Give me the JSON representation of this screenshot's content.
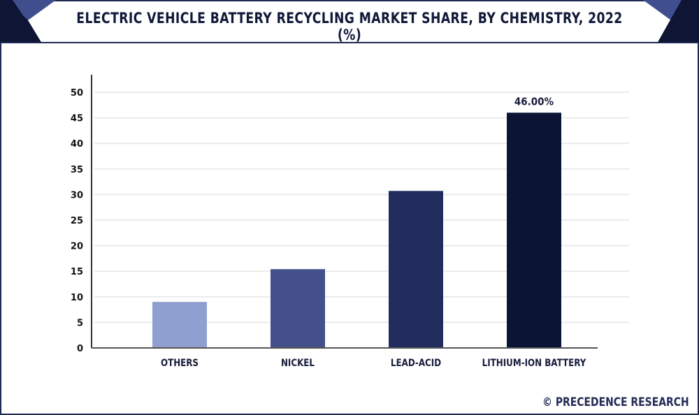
{
  "header": {
    "title": "ELECTRIC VEHICLE BATTERY RECYCLING MARKET SHARE, BY CHEMISTRY, 2022 (%)"
  },
  "footer": {
    "copyright_icon": "©",
    "brand": "PRECEDENCE RESEARCH"
  },
  "colors": {
    "frame": "#1d2a55",
    "title": "#0f1838",
    "accent_dark": "#0e1535",
    "accent_light": "#414e8e"
  },
  "chart_data": {
    "type": "bar",
    "title": "ELECTRIC VEHICLE BATTERY RECYCLING MARKET SHARE, BY CHEMISTRY, 2022 (%)",
    "xlabel": "",
    "ylabel": "",
    "categories": [
      "OTHERS",
      "NICKEL",
      "LEAD-ACID",
      "LITHIUM-ION BATTERY"
    ],
    "values": [
      9.0,
      15.4,
      30.7,
      46.0
    ],
    "bar_colors": [
      "#8fa0d0",
      "#43508a",
      "#222c5f",
      "#0b1434"
    ],
    "data_labels": [
      "",
      "",
      "",
      "46.00%"
    ],
    "ylim": [
      0,
      50
    ],
    "yticks": [
      0,
      5,
      10,
      15,
      20,
      25,
      30,
      35,
      40,
      45,
      50
    ],
    "grid": true,
    "legend": "none"
  }
}
